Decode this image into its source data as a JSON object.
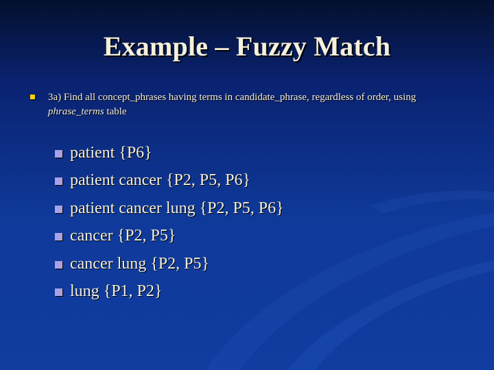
{
  "slide": {
    "title": "Example – Fuzzy Match",
    "lead": {
      "prefix": "3a) Find all concept_phrases having terms in candidate_phrase, regardless of order, using ",
      "emphasis": "phrase_terms",
      "suffix": " table"
    },
    "items": [
      {
        "label": "patient {P6}"
      },
      {
        "label": "patient cancer {P2, P5, P6}"
      },
      {
        "label": "patient cancer lung {P2, P5, P6}"
      },
      {
        "label": "cancer {P2, P5}"
      },
      {
        "label": "cancer lung {P2, P5}"
      },
      {
        "label": "lung {P1, P2}"
      }
    ]
  },
  "colors": {
    "background_top": "#04102e",
    "background_bottom": "#113ca0",
    "text": "#f4f0dc",
    "lead_bullet": "#ffd400",
    "item_bullet": "#aaa2e6"
  }
}
